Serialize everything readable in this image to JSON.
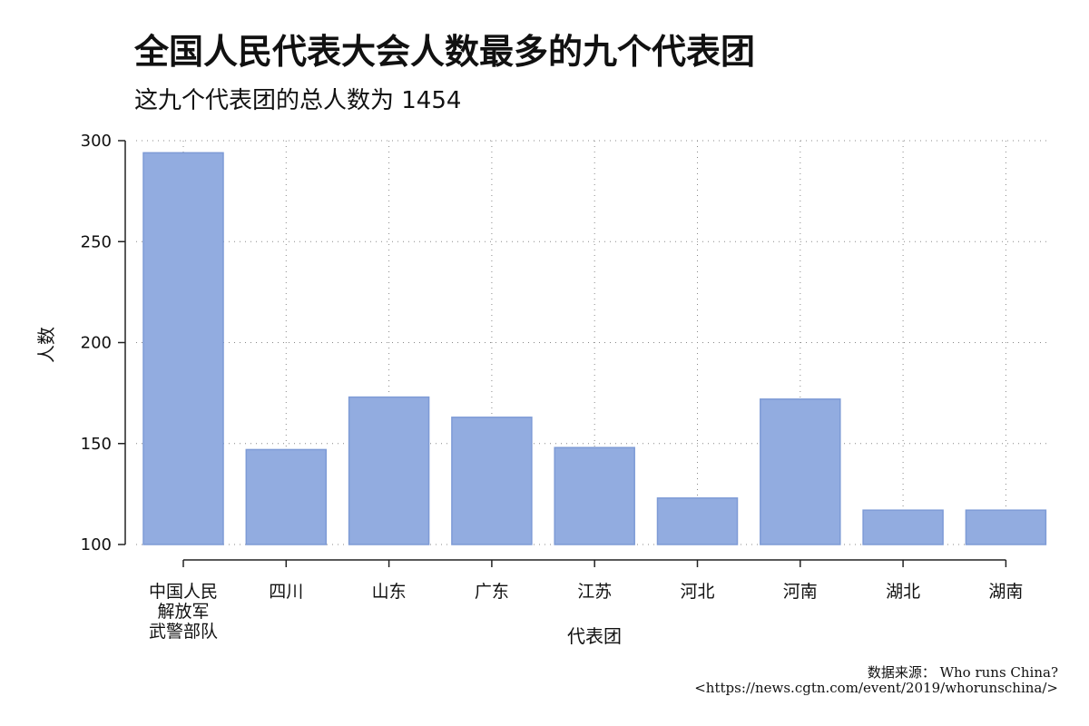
{
  "chart_data": {
    "type": "bar",
    "title": "全国人民代表大会人数最多的九个代表团",
    "subtitle": "这九个代表团的总人数为 1454",
    "xlabel": "代表团",
    "ylabel": "人数",
    "categories": [
      [
        "中国人民",
        "解放军",
        "武警部队"
      ],
      [
        "四川"
      ],
      [
        "山东"
      ],
      [
        "广东"
      ],
      [
        "江苏"
      ],
      [
        "河北"
      ],
      [
        "河南"
      ],
      [
        "湖北"
      ],
      [
        "湖南"
      ]
    ],
    "values": [
      294,
      147,
      173,
      163,
      148,
      123,
      172,
      117,
      117
    ],
    "ylim": [
      100,
      300
    ],
    "yticks": [
      "100",
      "150",
      "200",
      "250",
      "300"
    ],
    "grid": true,
    "bar_color": "#92ACE0",
    "bar_edge_color": "#7E9BD6"
  },
  "caption": {
    "source": "数据来源： Who runs China?",
    "url": "<https://news.cgtn.com/event/2019/whorunschina/>"
  }
}
